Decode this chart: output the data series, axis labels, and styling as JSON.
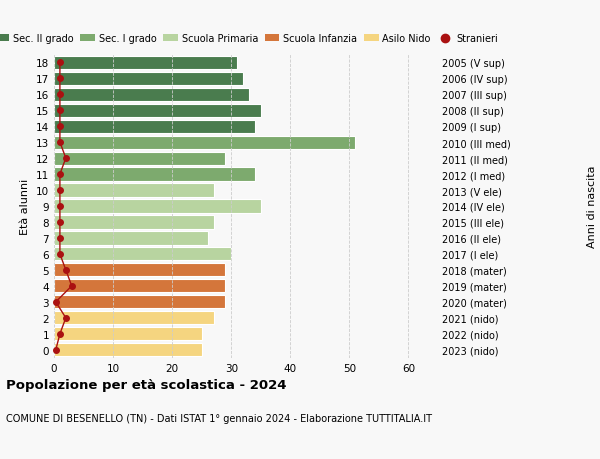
{
  "ages": [
    0,
    1,
    2,
    3,
    4,
    5,
    6,
    7,
    8,
    9,
    10,
    11,
    12,
    13,
    14,
    15,
    16,
    17,
    18
  ],
  "values": [
    25,
    25,
    27,
    29,
    29,
    29,
    30,
    26,
    27,
    35,
    27,
    34,
    29,
    51,
    34,
    35,
    33,
    32,
    31
  ],
  "stranieri": [
    0.3,
    1,
    2,
    0.3,
    3,
    2,
    1,
    1,
    1,
    1,
    1,
    1,
    2,
    1,
    1,
    1,
    1,
    1,
    1
  ],
  "right_labels": [
    "2023 (nido)",
    "2022 (nido)",
    "2021 (nido)",
    "2020 (mater)",
    "2019 (mater)",
    "2018 (mater)",
    "2017 (I ele)",
    "2016 (II ele)",
    "2015 (III ele)",
    "2014 (IV ele)",
    "2013 (V ele)",
    "2012 (I med)",
    "2011 (II med)",
    "2010 (III med)",
    "2009 (I sup)",
    "2008 (II sup)",
    "2007 (III sup)",
    "2006 (IV sup)",
    "2005 (V sup)"
  ],
  "colors": {
    "sec2": "#4a7c4e",
    "sec1": "#7daa6e",
    "primaria": "#b8d4a0",
    "infanzia": "#d4763b",
    "nido": "#f5d580",
    "stranieri": "#aa1111"
  },
  "bar_colors": [
    "#f5d580",
    "#f5d580",
    "#f5d580",
    "#d4763b",
    "#d4763b",
    "#d4763b",
    "#b8d4a0",
    "#b8d4a0",
    "#b8d4a0",
    "#b8d4a0",
    "#b8d4a0",
    "#7daa6e",
    "#7daa6e",
    "#7daa6e",
    "#4a7c4e",
    "#4a7c4e",
    "#4a7c4e",
    "#4a7c4e",
    "#4a7c4e"
  ],
  "title": "Popolazione per età scolastica - 2024",
  "subtitle": "COMUNE DI BESENELLO (TN) - Dati ISTAT 1° gennaio 2024 - Elaborazione TUTTITALIA.IT",
  "xlabel_right": "Anni di nascita",
  "ylabel": "Età alunni",
  "xlim": [
    0,
    65
  ],
  "xticks": [
    0,
    10,
    20,
    30,
    40,
    50,
    60
  ],
  "legend_items": [
    {
      "label": "Sec. II grado",
      "color": "#4a7c4e"
    },
    {
      "label": "Sec. I grado",
      "color": "#7daa6e"
    },
    {
      "label": "Scuola Primaria",
      "color": "#b8d4a0"
    },
    {
      "label": "Scuola Infanzia",
      "color": "#d4763b"
    },
    {
      "label": "Asilo Nido",
      "color": "#f5d580"
    },
    {
      "label": "Stranieri",
      "color": "#aa1111"
    }
  ],
  "background_color": "#f8f8f8"
}
